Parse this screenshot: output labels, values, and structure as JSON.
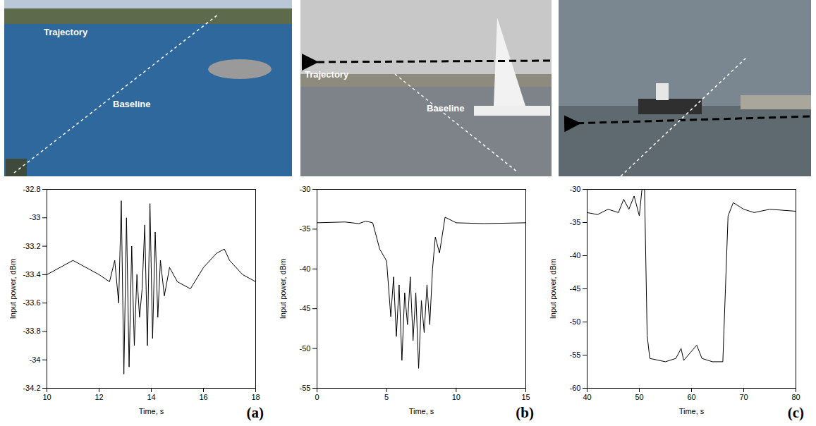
{
  "chart_data": [
    {
      "type": "line",
      "annotation": "(a)",
      "xlabel": "Time, s",
      "ylabel": "Input power, dBm",
      "color": "#000000",
      "xlim": [
        10,
        18
      ],
      "xticks": [
        10,
        12,
        14,
        16,
        18
      ],
      "ylim": [
        -34.2,
        -32.8
      ],
      "yticks": [
        -34.2,
        -34,
        -33.8,
        -33.6,
        -33.4,
        -33.2,
        -33,
        -32.8
      ],
      "x": [
        10,
        10.5,
        11,
        11.5,
        12,
        12.4,
        12.6,
        12.75,
        12.85,
        12.95,
        13.05,
        13.15,
        13.25,
        13.35,
        13.45,
        13.55,
        13.65,
        13.75,
        13.85,
        13.95,
        14.05,
        14.15,
        14.25,
        14.35,
        14.5,
        14.7,
        15,
        15.5,
        16,
        16.5,
        16.8,
        17,
        17.5,
        18
      ],
      "values": [
        -33.4,
        -33.35,
        -33.3,
        -33.35,
        -33.4,
        -33.45,
        -33.3,
        -33.6,
        -32.88,
        -34.1,
        -33,
        -34.05,
        -33.2,
        -33.9,
        -33.4,
        -33.7,
        -33.5,
        -33.05,
        -33.9,
        -32.9,
        -33.85,
        -33.1,
        -33.7,
        -33.3,
        -33.55,
        -33.35,
        -33.45,
        -33.5,
        -33.35,
        -33.25,
        -33.22,
        -33.3,
        -33.4,
        -33.45
      ]
    },
    {
      "type": "line",
      "annotation": "(b)",
      "xlabel": "Time, s",
      "ylabel": "Input power, dBm",
      "color": "#000000",
      "xlim": [
        0,
        15
      ],
      "xticks": [
        0,
        5,
        10,
        15
      ],
      "ylim": [
        -55,
        -30
      ],
      "yticks": [
        -55,
        -50,
        -45,
        -40,
        -35,
        -30
      ],
      "x": [
        0,
        2,
        3,
        3.5,
        4,
        4.2,
        4.5,
        5,
        5.3,
        5.5,
        5.7,
        5.9,
        6.1,
        6.3,
        6.5,
        6.7,
        6.9,
        7.1,
        7.3,
        7.5,
        7.7,
        7.9,
        8.1,
        8.3,
        8.5,
        8.8,
        9.2,
        10,
        12,
        15
      ],
      "values": [
        -34.2,
        -34.1,
        -34.3,
        -34,
        -34.2,
        -35.5,
        -37.5,
        -39,
        -46,
        -41,
        -48.5,
        -42,
        -51.5,
        -43,
        -47,
        -41,
        -49,
        -43,
        -52.5,
        -44,
        -48,
        -42,
        -47,
        -40,
        -36,
        -38,
        -33.5,
        -34.2,
        -34.3,
        -34.2
      ]
    },
    {
      "type": "line",
      "annotation": "(c)",
      "xlabel": "Time, s",
      "ylabel": "Input power, dBm",
      "color": "#000000",
      "xlim": [
        40,
        80
      ],
      "xticks": [
        40,
        50,
        60,
        70,
        80
      ],
      "ylim": [
        -60,
        -30
      ],
      "yticks": [
        -60,
        -55,
        -50,
        -45,
        -40,
        -35,
        -30
      ],
      "x": [
        40,
        42,
        44,
        46,
        47,
        48,
        49,
        50,
        50.5,
        51,
        51.5,
        52,
        55,
        57,
        58,
        58.5,
        61,
        62,
        64,
        66,
        66.5,
        67,
        68,
        70,
        72,
        75,
        80
      ],
      "values": [
        -33.5,
        -33.8,
        -33,
        -33.5,
        -31.5,
        -33,
        -31,
        -34,
        -30,
        -30,
        -52,
        -55.5,
        -56,
        -55.5,
        -54,
        -55.8,
        -53.5,
        -55.5,
        -56,
        -56,
        -45,
        -34,
        -32,
        -33,
        -33.5,
        -33,
        -33.3
      ]
    }
  ],
  "photos": [
    {
      "labels": [
        "Trajectory",
        "Baseline"
      ]
    },
    {
      "labels": [
        "Trajectory",
        "Baseline"
      ]
    },
    {
      "labels": []
    }
  ]
}
